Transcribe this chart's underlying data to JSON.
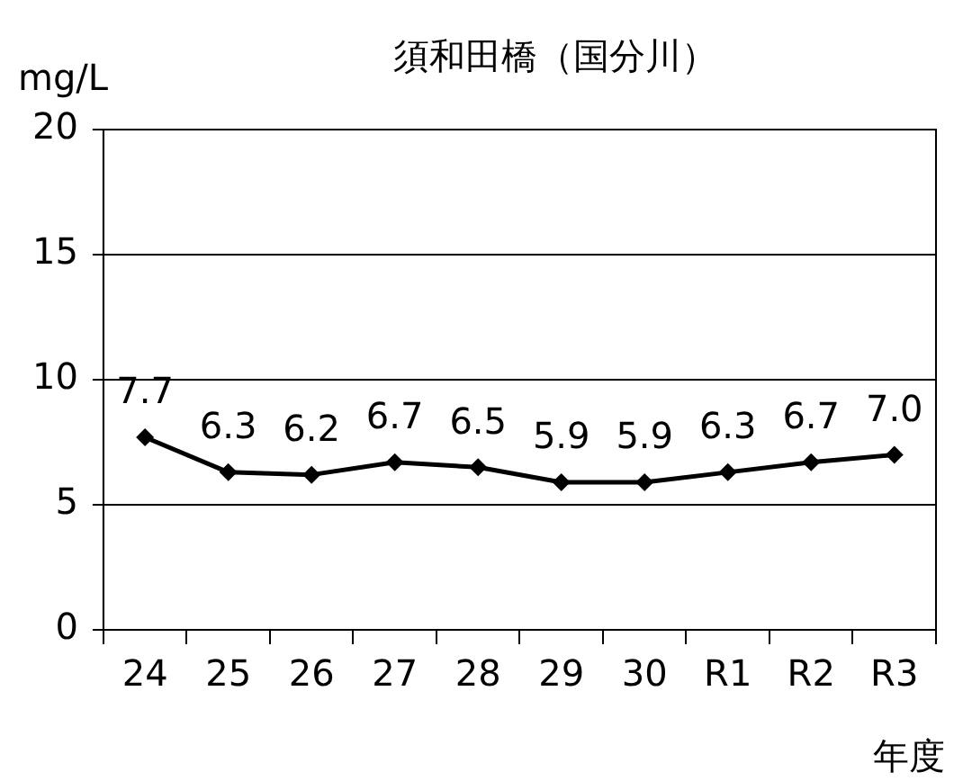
{
  "chart_data": {
    "type": "line",
    "title": "須和田橋（国分川）",
    "ylabel": "mg/L",
    "xlabel": "年度",
    "categories": [
      "24",
      "25",
      "26",
      "27",
      "28",
      "29",
      "30",
      "R1",
      "R2",
      "R3"
    ],
    "series": [
      {
        "color": "#000000",
        "values": [
          7.7,
          6.3,
          6.2,
          6.7,
          6.5,
          5.9,
          5.9,
          6.3,
          6.7,
          7.0
        ]
      }
    ],
    "value_labels": [
      "7.7",
      "6.3",
      "6.2",
      "6.7",
      "6.5",
      "5.9",
      "5.9",
      "6.3",
      "6.7",
      "7.0"
    ],
    "ylim": [
      0,
      20
    ],
    "yticks": [
      0,
      5,
      10,
      15,
      20
    ],
    "grid": "y",
    "legend": false,
    "marker": "diamond",
    "line_style": "solid"
  }
}
